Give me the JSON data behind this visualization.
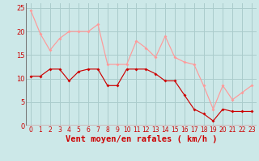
{
  "xlabel": "Vent moyen/en rafales ( km/h )",
  "bg_color": "#cce8e8",
  "grid_color": "#aacccc",
  "x": [
    0,
    1,
    2,
    3,
    4,
    5,
    6,
    7,
    8,
    9,
    10,
    11,
    12,
    13,
    14,
    15,
    16,
    17,
    18,
    19,
    20,
    21,
    22,
    23
  ],
  "mean_wind": [
    10.5,
    10.5,
    12.0,
    12.0,
    9.5,
    11.5,
    12.0,
    12.0,
    8.5,
    8.5,
    12.0,
    12.0,
    12.0,
    11.0,
    9.5,
    9.5,
    6.5,
    3.5,
    2.5,
    1.0,
    3.5,
    3.0,
    3.0,
    3.0
  ],
  "gust_wind": [
    24.5,
    19.5,
    16.0,
    18.5,
    20.0,
    20.0,
    20.0,
    21.5,
    13.0,
    13.0,
    13.0,
    18.0,
    16.5,
    14.5,
    19.0,
    14.5,
    13.5,
    13.0,
    8.5,
    3.5,
    8.5,
    5.5,
    7.0,
    8.5
  ],
  "mean_color": "#cc0000",
  "gust_color": "#ff9999",
  "axis_color": "#cc0000",
  "left_line_color": "#777777",
  "xlim": [
    0,
    23
  ],
  "ylim": [
    0,
    26
  ],
  "yticks": [
    0,
    5,
    10,
    15,
    20,
    25
  ],
  "xticks": [
    0,
    1,
    2,
    3,
    4,
    5,
    6,
    7,
    8,
    9,
    10,
    11,
    12,
    13,
    14,
    15,
    16,
    17,
    18,
    19,
    20,
    21,
    22,
    23
  ],
  "xlabel_fontsize": 7.5,
  "tick_fontsize": 5.5
}
